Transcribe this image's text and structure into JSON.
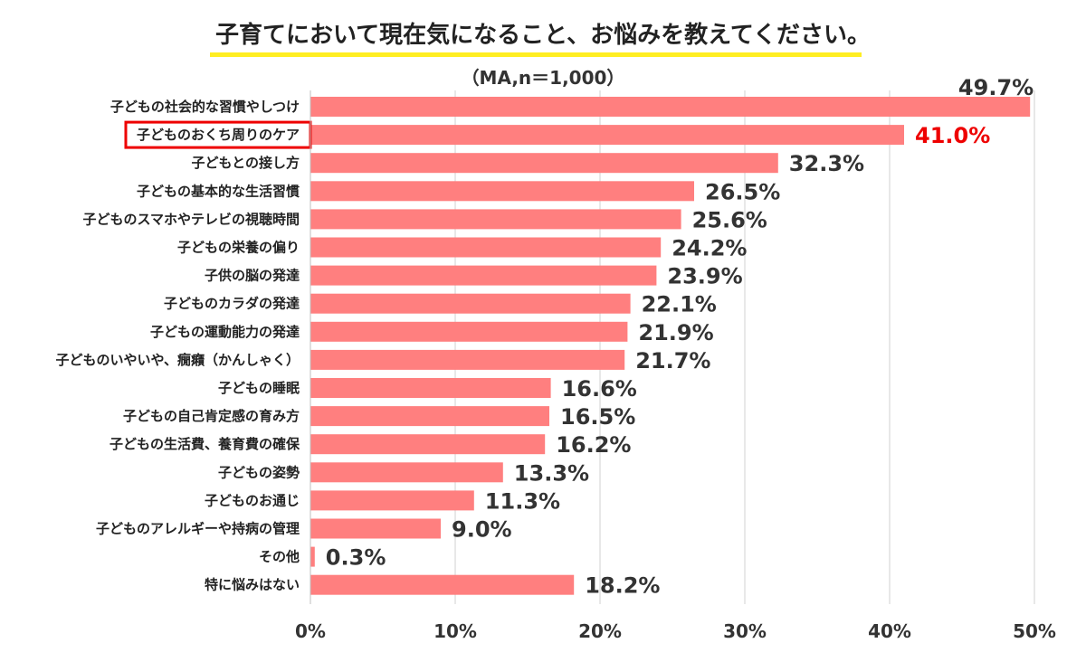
{
  "chart_data": {
    "type": "bar",
    "orientation": "horizontal",
    "title": "子育てにおいて現在気になること、お悩みを教えてください。",
    "subtitle": "（MA,n＝1,000）",
    "categories": [
      "子どもの社会的な習慣やしつけ",
      "子どものおくち周りのケア",
      "子どもとの接し方",
      "子どもの基本的な生活習慣",
      "子どものスマホやテレビの視聴時間",
      "子どもの栄養の偏り",
      "子供の脳の発達",
      "子どものカラダの発達",
      "子どもの運動能力の発達",
      "子どものいやいや、癇癪（かんしゃく）",
      "子どもの睡眠",
      "子どもの自己肯定感の育み方",
      "子どもの生活費、養育費の確保",
      "子どもの姿勢",
      "子どものお通じ",
      "子どものアレルギーや持病の管理",
      "その他",
      "特に悩みはない"
    ],
    "values": [
      49.7,
      41.0,
      32.3,
      26.5,
      25.6,
      24.2,
      23.9,
      22.1,
      21.9,
      21.7,
      16.6,
      16.5,
      16.2,
      13.3,
      11.3,
      9.0,
      0.3,
      18.2
    ],
    "value_labels": [
      "49.7%",
      "41.0%",
      "32.3%",
      "26.5%",
      "25.6%",
      "24.2%",
      "23.9%",
      "22.1%",
      "21.9%",
      "21.7%",
      "16.6%",
      "16.5%",
      "16.2%",
      "13.3%",
      "11.3%",
      "9.0%",
      "0.3%",
      "18.2%"
    ],
    "highlight_index": 1,
    "xlim": [
      0,
      50
    ],
    "xticks": [
      "0%",
      "10%",
      "20%",
      "30%",
      "40%",
      "50%"
    ],
    "grid": true,
    "bar_color": "#ff7f7f",
    "highlight_color": "#ee0000",
    "title_underline_color": "#ffee22"
  }
}
